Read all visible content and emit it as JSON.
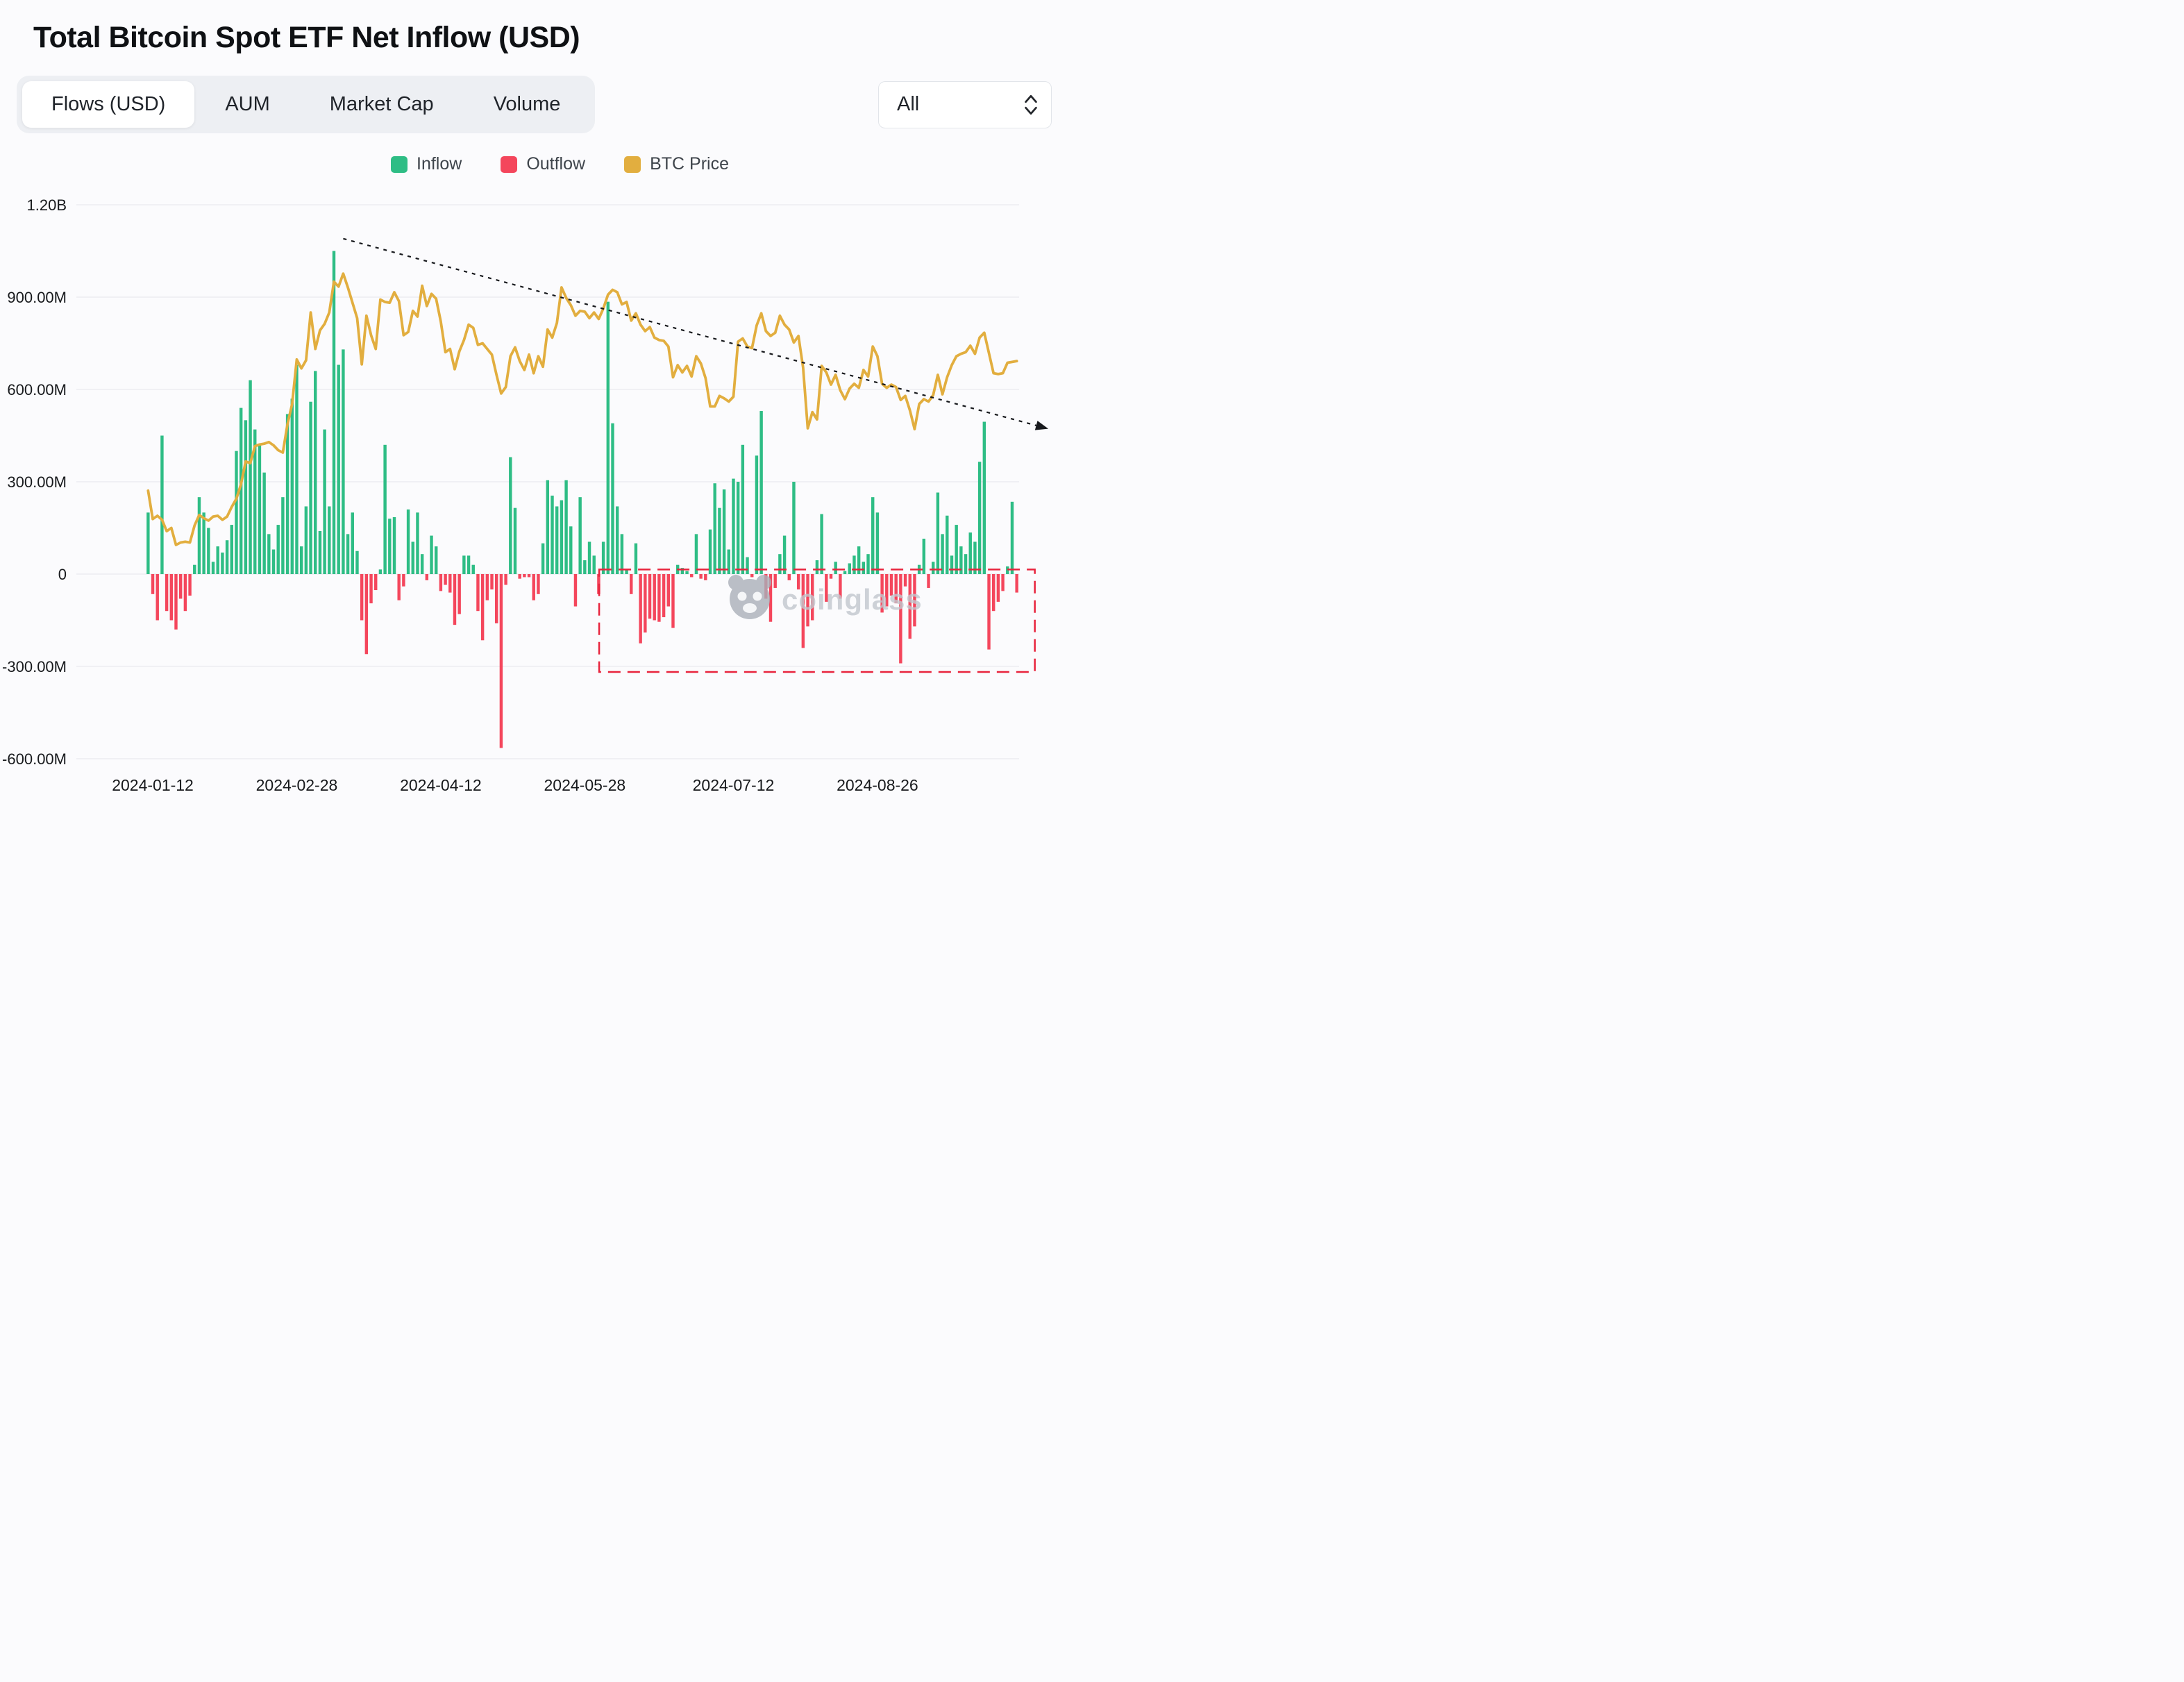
{
  "header": {
    "title": "Total Bitcoin Spot ETF Net Inflow (USD)"
  },
  "tabs": [
    {
      "label": "Flows (USD)",
      "active": true
    },
    {
      "label": "AUM",
      "active": false
    },
    {
      "label": "Market Cap",
      "active": false
    },
    {
      "label": "Volume",
      "active": false
    }
  ],
  "range_select": {
    "value": "All"
  },
  "legend": [
    {
      "label": "Inflow",
      "color": "#2ebd85"
    },
    {
      "label": "Outflow",
      "color": "#f4465c"
    },
    {
      "label": "BTC Price",
      "color": "#e2ae3f"
    }
  ],
  "watermark": {
    "text": "coinglass"
  },
  "colors": {
    "background": "#fbfbfd",
    "grid": "#ececf1",
    "axis_text": "#17191c",
    "trendline": "#17191d",
    "highlight_box": "#e8243d"
  },
  "chart_data": {
    "type": "bar",
    "title": "Total Bitcoin Spot ETF Net Inflow (USD)",
    "xlabel": "Date",
    "ylabel": "Net flow (USD)",
    "ylim_musd": [
      -600,
      1200
    ],
    "grid": true,
    "legend_position": "top-center",
    "y_axis": {
      "ticks": [
        {
          "label": "1.20B",
          "value_m": 1200
        },
        {
          "label": "900.00M",
          "value_m": 900
        },
        {
          "label": "600.00M",
          "value_m": 600
        },
        {
          "label": "300.00M",
          "value_m": 300
        },
        {
          "label": "0",
          "value_m": 0
        },
        {
          "label": "-300.00M",
          "value_m": -300
        },
        {
          "label": "-600.00M",
          "value_m": -600
        }
      ]
    },
    "x_axis": {
      "tick_dates": [
        "2024-01-12",
        "2024-02-28",
        "2024-04-12",
        "2024-05-28",
        "2024-07-12",
        "2024-08-26"
      ]
    },
    "price_axis": {
      "min": 36000,
      "max": 74000,
      "maps_to_flow_m": 1000
    },
    "trendline": {
      "from_date": "2024-03-13",
      "from_value_m": 1090,
      "to_date": "2024-10-08",
      "to_value_m": 500
    },
    "highlight_box": {
      "from_date": "2024-06-03",
      "to_date": "2024-10-08",
      "top_value_m": 15,
      "bottom_value_m": -318
    },
    "dates": [
      "2024-01-11",
      "2024-01-12",
      "2024-01-16",
      "2024-01-17",
      "2024-01-18",
      "2024-01-19",
      "2024-01-22",
      "2024-01-23",
      "2024-01-24",
      "2024-01-25",
      "2024-01-26",
      "2024-01-29",
      "2024-01-30",
      "2024-01-31",
      "2024-02-01",
      "2024-02-02",
      "2024-02-05",
      "2024-02-06",
      "2024-02-07",
      "2024-02-08",
      "2024-02-09",
      "2024-02-12",
      "2024-02-13",
      "2024-02-14",
      "2024-02-15",
      "2024-02-16",
      "2024-02-20",
      "2024-02-21",
      "2024-02-22",
      "2024-02-23",
      "2024-02-26",
      "2024-02-27",
      "2024-02-28",
      "2024-02-29",
      "2024-03-01",
      "2024-03-04",
      "2024-03-05",
      "2024-03-06",
      "2024-03-07",
      "2024-03-08",
      "2024-03-11",
      "2024-03-12",
      "2024-03-13",
      "2024-03-14",
      "2024-03-15",
      "2024-03-18",
      "2024-03-19",
      "2024-03-20",
      "2024-03-21",
      "2024-03-22",
      "2024-03-25",
      "2024-03-26",
      "2024-03-27",
      "2024-03-28",
      "2024-04-01",
      "2024-04-02",
      "2024-04-03",
      "2024-04-04",
      "2024-04-05",
      "2024-04-08",
      "2024-04-09",
      "2024-04-10",
      "2024-04-11",
      "2024-04-12",
      "2024-04-15",
      "2024-04-16",
      "2024-04-17",
      "2024-04-18",
      "2024-04-19",
      "2024-04-22",
      "2024-04-23",
      "2024-04-24",
      "2024-04-25",
      "2024-04-26",
      "2024-04-29",
      "2024-04-30",
      "2024-05-01",
      "2024-05-02",
      "2024-05-03",
      "2024-05-06",
      "2024-05-07",
      "2024-05-08",
      "2024-05-09",
      "2024-05-10",
      "2024-05-13",
      "2024-05-14",
      "2024-05-15",
      "2024-05-16",
      "2024-05-17",
      "2024-05-20",
      "2024-05-21",
      "2024-05-22",
      "2024-05-23",
      "2024-05-24",
      "2024-05-28",
      "2024-05-29",
      "2024-05-30",
      "2024-05-31",
      "2024-06-03",
      "2024-06-04",
      "2024-06-05",
      "2024-06-06",
      "2024-06-07",
      "2024-06-10",
      "2024-06-11",
      "2024-06-12",
      "2024-06-13",
      "2024-06-14",
      "2024-06-17",
      "2024-06-18",
      "2024-06-19",
      "2024-06-20",
      "2024-06-21",
      "2024-06-24",
      "2024-06-25",
      "2024-06-26",
      "2024-06-27",
      "2024-06-28",
      "2024-07-01",
      "2024-07-02",
      "2024-07-03",
      "2024-07-05",
      "2024-07-08",
      "2024-07-09",
      "2024-07-10",
      "2024-07-11",
      "2024-07-12",
      "2024-07-15",
      "2024-07-16",
      "2024-07-17",
      "2024-07-18",
      "2024-07-19",
      "2024-07-22",
      "2024-07-23",
      "2024-07-24",
      "2024-07-25",
      "2024-07-26",
      "2024-07-29",
      "2024-07-30",
      "2024-07-31",
      "2024-08-01",
      "2024-08-02",
      "2024-08-05",
      "2024-08-06",
      "2024-08-07",
      "2024-08-08",
      "2024-08-09",
      "2024-08-12",
      "2024-08-13",
      "2024-08-14",
      "2024-08-15",
      "2024-08-16",
      "2024-08-19",
      "2024-08-20",
      "2024-08-21",
      "2024-08-22",
      "2024-08-23",
      "2024-08-26",
      "2024-08-27",
      "2024-08-28",
      "2024-08-29",
      "2024-08-30",
      "2024-09-03",
      "2024-09-04",
      "2024-09-05",
      "2024-09-06",
      "2024-09-09",
      "2024-09-10",
      "2024-09-11",
      "2024-09-12",
      "2024-09-13",
      "2024-09-16",
      "2024-09-17",
      "2024-09-18",
      "2024-09-19",
      "2024-09-20",
      "2024-09-23",
      "2024-09-24",
      "2024-09-25",
      "2024-09-26",
      "2024-09-27",
      "2024-09-30",
      "2024-10-01",
      "2024-10-02",
      "2024-10-03",
      "2024-10-04",
      "2024-10-07",
      "2024-10-08"
    ],
    "flows_musd": [
      200,
      -65,
      -150,
      450,
      -120,
      -150,
      -180,
      -80,
      -120,
      -70,
      30,
      250,
      200,
      150,
      40,
      90,
      70,
      110,
      160,
      400,
      540,
      500,
      630,
      470,
      420,
      330,
      130,
      80,
      160,
      250,
      520,
      570,
      680,
      90,
      220,
      560,
      660,
      140,
      470,
      220,
      1050,
      680,
      730,
      130,
      200,
      75,
      -150,
      -260,
      -95,
      -52,
      15,
      420,
      180,
      185,
      -85,
      -40,
      210,
      105,
      200,
      65,
      -20,
      125,
      90,
      -55,
      -35,
      -60,
      -165,
      -130,
      60,
      60,
      30,
      -120,
      -215,
      -85,
      -50,
      -160,
      -565,
      -35,
      380,
      215,
      -15,
      -10,
      -10,
      -85,
      -65,
      100,
      305,
      255,
      220,
      240,
      305,
      155,
      -105,
      250,
      45,
      105,
      60,
      -65,
      105,
      885,
      490,
      220,
      130,
      15,
      -65,
      100,
      -225,
      -190,
      -145,
      -150,
      -155,
      -140,
      -105,
      -175,
      30,
      20,
      10,
      -10,
      130,
      -15,
      -20,
      145,
      295,
      215,
      275,
      80,
      310,
      300,
      420,
      55,
      -10,
      385,
      530,
      -80,
      -155,
      -45,
      65,
      125,
      -20,
      300,
      -50,
      -240,
      -170,
      -150,
      45,
      195,
      -90,
      -15,
      40,
      -80,
      10,
      35,
      60,
      90,
      40,
      65,
      250,
      200,
      -125,
      -105,
      -70,
      -95,
      -290,
      -40,
      -210,
      -170,
      30,
      115,
      -45,
      40,
      265,
      130,
      190,
      60,
      160,
      90,
      65,
      135,
      105,
      365,
      495,
      -245,
      -120,
      -90,
      -55,
      25,
      235,
      -60
    ],
    "btc_price_usd": [
      46300,
      42800,
      43200,
      42700,
      41300,
      41700,
      39600,
      39900,
      40000,
      39900,
      42000,
      43300,
      42900,
      42600,
      43100,
      43200,
      42700,
      43100,
      44300,
      45300,
      47100,
      49900,
      49700,
      51800,
      52000,
      52100,
      52300,
      51900,
      51300,
      51000,
      54500,
      57000,
      62500,
      61400,
      62400,
      68300,
      63800,
      66100,
      66900,
      68300,
      72100,
      71500,
      73100,
      71400,
      69500,
      67600,
      61900,
      67900,
      65500,
      63800,
      69900,
      69600,
      69500,
      70800,
      69700,
      65500,
      65900,
      68500,
      67800,
      71600,
      69100,
      70600,
      70000,
      67200,
      63400,
      63800,
      61300,
      63500,
      64900,
      66800,
      66400,
      64300,
      64500,
      63800,
      63100,
      60600,
      58300,
      59100,
      62900,
      64000,
      62300,
      61200,
      63100,
      60800,
      62900,
      61600,
      66200,
      65200,
      67000,
      71400,
      70100,
      69200,
      67900,
      68500,
      68400,
      67600,
      68300,
      67500,
      68800,
      70500,
      71100,
      70800,
      69300,
      69600,
      67300,
      68200,
      66800,
      66000,
      66500,
      65200,
      64900,
      64800,
      64100,
      60300,
      61800,
      60900,
      61700,
      60400,
      62900,
      62000,
      60200,
      56700,
      56700,
      58000,
      57700,
      57300,
      57900,
      64700,
      65100,
      64100,
      63900,
      66700,
      68200,
      66000,
      65400,
      65800,
      67900,
      66800,
      66200,
      64600,
      65400,
      61500,
      54000,
      56000,
      55100,
      61700,
      60900,
      59400,
      60600,
      58700,
      57600,
      58900,
      59500,
      59000,
      61200,
      60400,
      64100,
      62900,
      59500,
      59000,
      59400,
      59100,
      57500,
      58000,
      56200,
      53900,
      57000,
      57600,
      57300,
      58100,
      60600,
      58200,
      60300,
      61800,
      62900,
      63200,
      63400,
      64200,
      63200,
      65200,
      65800,
      63300,
      60800,
      60700,
      60800,
      62100,
      62200,
      62300
    ]
  }
}
